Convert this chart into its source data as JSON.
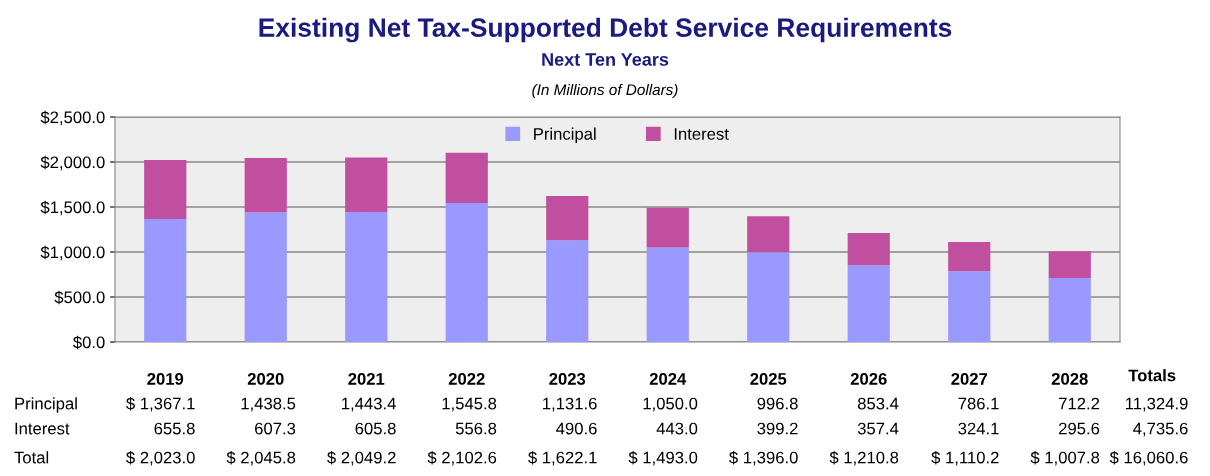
{
  "chart_data": {
    "type": "bar",
    "title": "Existing Net Tax-Supported Debt Service Requirements",
    "subtitle": "Next Ten Years",
    "categories": [
      "2019",
      "2020",
      "2021",
      "2022",
      "2023",
      "2024",
      "2025",
      "2026",
      "2027",
      "2028"
    ],
    "stacked": true,
    "series": [
      {
        "name": "Principal",
        "color": "#9999ff",
        "values": [
          1367.1,
          1438.5,
          1443.4,
          1545.8,
          1131.6,
          1050.0,
          996.8,
          853.4,
          786.1,
          712.2
        ],
        "value_labels": [
          "$ 1,367.1",
          "1,438.5",
          "1,443.4",
          "1,545.8",
          "1,131.6",
          "1,050.0",
          "996.8",
          "853.4",
          "786.1",
          "712.2"
        ]
      },
      {
        "name": "Interest",
        "color": "#c0509f",
        "values": [
          655.8,
          607.3,
          605.8,
          556.8,
          490.6,
          443.0,
          399.2,
          357.4,
          324.1,
          295.6
        ],
        "value_labels": [
          "655.8",
          "607.3",
          "605.8",
          "556.8",
          "490.6",
          "443.0",
          "399.2",
          "357.4",
          "324.1",
          "295.6"
        ]
      }
    ],
    "annotations": [
      "(In Millions of Dollars)",
      "Total",
      "Totals",
      "11,324.9",
      "4,735.6",
      "$ 16,060.6",
      "$ 2,023.0",
      "$ 2,045.8",
      "$ 2,049.2",
      "$ 2,102.6",
      "$ 1,622.1",
      "$ 1,493.0",
      "$ 1,396.0",
      "$ 1,210.8",
      "$ 1,110.2",
      "$ 1,007.8"
    ],
    "ylim": [
      0,
      2500
    ],
    "yticks": [
      {
        "value": 0,
        "label": "$0.0"
      },
      {
        "value": 500,
        "label": "$500.0"
      },
      {
        "value": 1000,
        "label": "$1,000.0"
      },
      {
        "value": 1500,
        "label": "$1,500.0"
      },
      {
        "value": 2000,
        "label": "$2,000.0"
      },
      {
        "value": 2500,
        "label": "$2,500.0"
      }
    ],
    "grid": "y",
    "legend": "top",
    "data_labels": false
  }
}
